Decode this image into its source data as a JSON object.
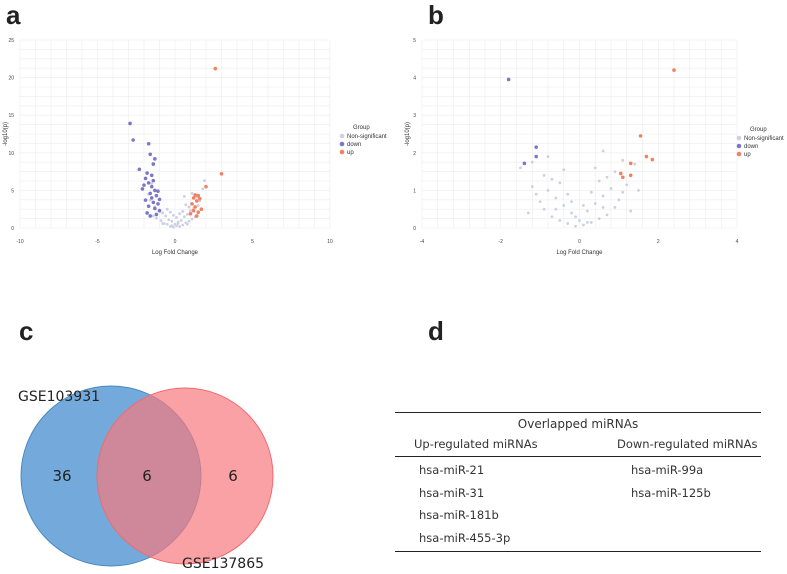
{
  "panels": {
    "a": "a",
    "b": "b",
    "c": "c",
    "d": "d"
  },
  "chart_data": [
    {
      "id": "a",
      "type": "scatter",
      "title": "",
      "xlabel": "Log Fold Change",
      "ylabel": "-log10(p)",
      "xlim": [
        -10,
        10
      ],
      "ylim": [
        0,
        25
      ],
      "xticks": [
        -10,
        -5,
        0,
        5,
        10
      ],
      "yticks": [
        0,
        5,
        10,
        15,
        20,
        25
      ],
      "legend": {
        "title": "Group",
        "position": "right",
        "entries": [
          {
            "label": "Non-significant",
            "color": "#cdd0e3"
          },
          {
            "label": "down",
            "color": "#7b78c6"
          },
          {
            "label": "up",
            "color": "#f2825f"
          }
        ]
      },
      "series": [
        {
          "name": "Non-significant",
          "color": "#cdd0e3",
          "points": [
            [
              -0.3,
              0.2
            ],
            [
              -0.1,
              0.1
            ],
            [
              0.1,
              0.3
            ],
            [
              0.3,
              0.2
            ],
            [
              0.5,
              0.4
            ],
            [
              -0.5,
              0.5
            ],
            [
              -0.7,
              0.6
            ],
            [
              0.7,
              0.7
            ],
            [
              0.9,
              0.9
            ],
            [
              -0.9,
              1.0
            ],
            [
              1.1,
              1.2
            ],
            [
              -1.2,
              1.3
            ],
            [
              0.0,
              0.5
            ],
            [
              0.2,
              0.8
            ],
            [
              -0.2,
              0.9
            ],
            [
              0.4,
              1.0
            ],
            [
              -0.4,
              1.1
            ],
            [
              0.6,
              1.5
            ],
            [
              -0.6,
              1.6
            ],
            [
              0.8,
              1.8
            ],
            [
              -0.8,
              2.0
            ],
            [
              1.0,
              2.3
            ],
            [
              -1.0,
              2.4
            ],
            [
              1.2,
              2.6
            ],
            [
              -1.3,
              2.8
            ],
            [
              1.5,
              3.0
            ],
            [
              0.3,
              1.9
            ],
            [
              -0.3,
              2.1
            ],
            [
              0.1,
              1.4
            ],
            [
              -0.1,
              1.7
            ],
            [
              0.5,
              2.2
            ],
            [
              -0.5,
              2.5
            ],
            [
              0.7,
              3.1
            ],
            [
              1.3,
              1.5
            ],
            [
              -1.4,
              1.6
            ],
            [
              0.9,
              2.8
            ],
            [
              -1.1,
              3.2
            ],
            [
              1.6,
              3.6
            ],
            [
              -1.6,
              3.7
            ],
            [
              1.4,
              4.1
            ],
            [
              0.2,
              0.6
            ],
            [
              -0.2,
              0.3
            ],
            [
              0.8,
              0.5
            ],
            [
              -0.8,
              0.6
            ],
            [
              1.8,
              5.2
            ],
            [
              -1.7,
              4.5
            ],
            [
              1.9,
              6.3
            ],
            [
              -1.5,
              5.9
            ],
            [
              0.6,
              4.2
            ],
            [
              1.1,
              4.6
            ]
          ]
        },
        {
          "name": "down",
          "color": "#7b78c6",
          "points": [
            [
              -2.9,
              13.9
            ],
            [
              -2.7,
              11.7
            ],
            [
              -1.7,
              11.2
            ],
            [
              -1.6,
              9.8
            ],
            [
              -2.3,
              7.8
            ],
            [
              -1.8,
              7.3
            ],
            [
              -1.5,
              7.0
            ],
            [
              -1.9,
              6.6
            ],
            [
              -1.4,
              6.3
            ],
            [
              -1.7,
              6.0
            ],
            [
              -2.0,
              5.7
            ],
            [
              -1.5,
              5.5
            ],
            [
              -2.1,
              5.2
            ],
            [
              -1.3,
              5.0
            ],
            [
              -1.6,
              4.6
            ],
            [
              -1.2,
              4.3
            ],
            [
              -1.5,
              4.0
            ],
            [
              -1.9,
              3.7
            ],
            [
              -1.4,
              3.4
            ],
            [
              -1.1,
              3.2
            ],
            [
              -1.7,
              2.9
            ],
            [
              -1.3,
              2.6
            ],
            [
              -1.0,
              2.3
            ],
            [
              -1.8,
              2.0
            ],
            [
              -1.2,
              1.8
            ],
            [
              -1.6,
              1.6
            ],
            [
              -1.4,
              8.5
            ],
            [
              -1.3,
              9.2
            ],
            [
              -1.1,
              4.9
            ],
            [
              -1.0,
              3.8
            ]
          ]
        },
        {
          "name": "up",
          "color": "#f2825f",
          "points": [
            [
              2.6,
              21.2
            ],
            [
              3.0,
              7.2
            ],
            [
              2.0,
              5.5
            ],
            [
              1.3,
              4.4
            ],
            [
              1.5,
              4.3
            ],
            [
              1.2,
              4.0
            ],
            [
              1.6,
              3.9
            ],
            [
              1.4,
              3.6
            ],
            [
              1.1,
              3.2
            ],
            [
              1.3,
              2.8
            ],
            [
              1.7,
              2.5
            ],
            [
              1.2,
              2.3
            ],
            [
              1.5,
              2.1
            ],
            [
              1.0,
              1.9
            ],
            [
              1.4,
              1.6
            ]
          ]
        }
      ]
    },
    {
      "id": "b",
      "type": "scatter",
      "title": "",
      "xlabel": "Log Fold Change",
      "ylabel": "-log10(p)",
      "xlim": [
        -4,
        4
      ],
      "ylim": [
        0,
        5
      ],
      "xticks": [
        -4,
        -2,
        0,
        2,
        4
      ],
      "yticks": [
        0,
        1,
        2,
        3,
        4,
        5
      ],
      "legend": {
        "title": "Group",
        "position": "right",
        "entries": [
          {
            "label": "Non-significant",
            "color": "#cdd0e3"
          },
          {
            "label": "down",
            "color": "#7b78c6"
          },
          {
            "label": "up",
            "color": "#f2825f"
          }
        ]
      },
      "series": [
        {
          "name": "Non-significant",
          "color": "#cdd0e3",
          "points": [
            [
              -0.1,
              0.05
            ],
            [
              0.1,
              0.08
            ],
            [
              -0.3,
              0.12
            ],
            [
              0.3,
              0.15
            ],
            [
              -0.5,
              0.2
            ],
            [
              0.5,
              0.25
            ],
            [
              -0.7,
              0.3
            ],
            [
              0.7,
              0.35
            ],
            [
              -0.2,
              0.4
            ],
            [
              0.2,
              0.45
            ],
            [
              -0.9,
              0.5
            ],
            [
              0.9,
              0.55
            ],
            [
              -0.4,
              0.6
            ],
            [
              0.4,
              0.65
            ],
            [
              -1.0,
              0.7
            ],
            [
              1.0,
              0.75
            ],
            [
              -0.6,
              0.8
            ],
            [
              0.6,
              0.85
            ],
            [
              -1.1,
              0.9
            ],
            [
              1.1,
              0.95
            ],
            [
              -0.8,
              1.0
            ],
            [
              0.8,
              1.05
            ],
            [
              -1.2,
              1.1
            ],
            [
              1.2,
              1.15
            ],
            [
              -0.3,
              0.9
            ],
            [
              0.3,
              0.95
            ],
            [
              -0.7,
              1.3
            ],
            [
              0.7,
              1.35
            ],
            [
              -0.9,
              1.4
            ],
            [
              0.9,
              1.5
            ],
            [
              -0.5,
              1.2
            ],
            [
              0.5,
              1.25
            ],
            [
              -1.3,
              0.4
            ],
            [
              1.3,
              0.45
            ],
            [
              -0.1,
              0.3
            ],
            [
              0.1,
              0.6
            ],
            [
              -0.6,
              0.5
            ],
            [
              0.6,
              0.55
            ],
            [
              -1.5,
              1.6
            ],
            [
              1.4,
              1.7
            ],
            [
              -0.4,
              1.55
            ],
            [
              0.4,
              1.6
            ],
            [
              -1.2,
              1.75
            ],
            [
              1.1,
              1.8
            ],
            [
              0.6,
              2.05
            ],
            [
              -0.8,
              1.9
            ],
            [
              0.0,
              0.2
            ],
            [
              -0.2,
              0.7
            ],
            [
              0.2,
              0.15
            ],
            [
              1.5,
              1.0
            ]
          ]
        },
        {
          "name": "down",
          "color": "#7b78c6",
          "points": [
            [
              -1.8,
              3.95
            ],
            [
              -1.1,
              2.15
            ],
            [
              -1.1,
              1.9
            ],
            [
              -1.4,
              1.72
            ]
          ]
        },
        {
          "name": "up",
          "color": "#f2825f",
          "points": [
            [
              2.4,
              4.2
            ],
            [
              1.55,
              2.45
            ],
            [
              1.7,
              1.9
            ],
            [
              1.85,
              1.82
            ],
            [
              1.3,
              1.72
            ],
            [
              1.05,
              1.45
            ],
            [
              1.3,
              1.4
            ],
            [
              1.1,
              1.35
            ]
          ]
        }
      ]
    }
  ],
  "venn": {
    "left_label": "GSE103931",
    "right_label": "GSE137865",
    "left_only": "36",
    "overlap": "6",
    "right_only": "6",
    "left_color": "#5b9bd5",
    "right_color": "#f7797d"
  },
  "table": {
    "caption": "Overlapped miRNAs",
    "headers": [
      "Up-regulated miRNAs",
      "Down-regulated miRNAs"
    ],
    "up": [
      "hsa-miR-21",
      "hsa-miR-31",
      "hsa-miR-181b",
      "hsa-miR-455-3p"
    ],
    "down": [
      "hsa-miR-99a",
      "hsa-miR-125b"
    ]
  }
}
